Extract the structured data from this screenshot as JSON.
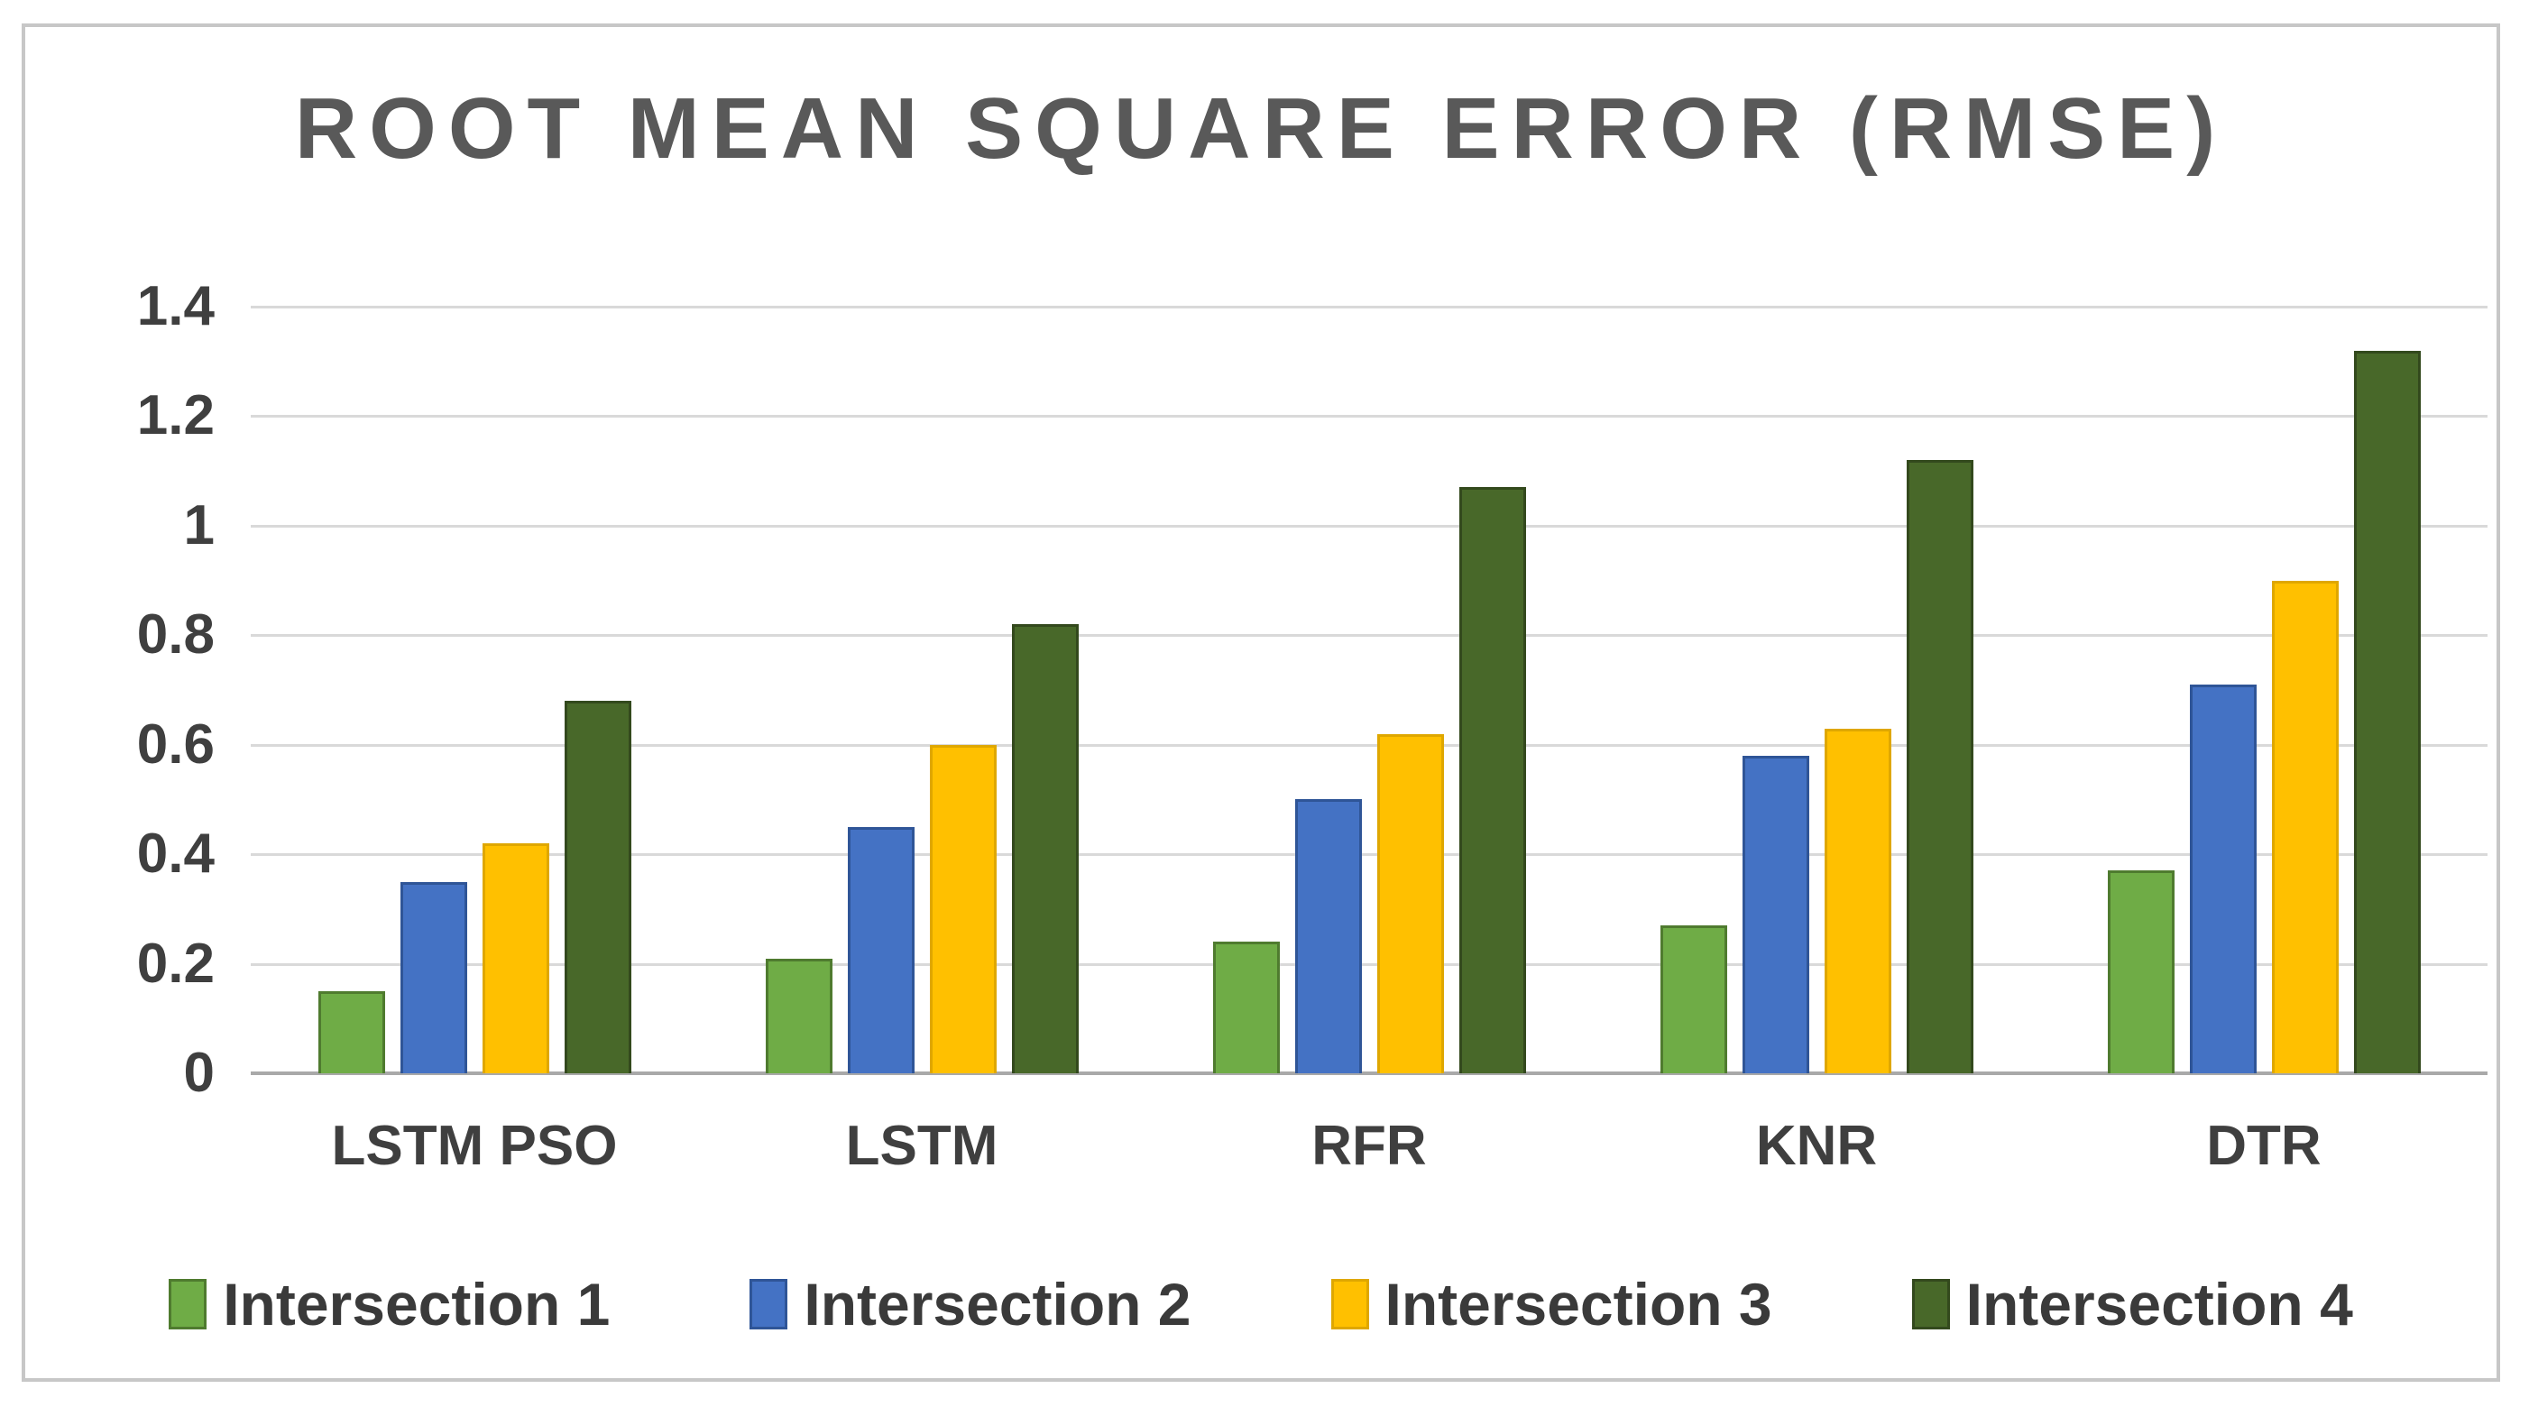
{
  "chart_data": {
    "type": "bar",
    "title": "ROOT MEAN SQUARE ERROR (RMSE)",
    "categories": [
      "LSTM PSO",
      "LSTM",
      "RFR",
      "KNR",
      "DTR"
    ],
    "series": [
      {
        "name": "Intersection 1",
        "color": "#6FAC46",
        "border_color": "#4F7B2F",
        "values": [
          0.15,
          0.21,
          0.24,
          0.27,
          0.37
        ]
      },
      {
        "name": "Intersection 2",
        "color": "#4472C4",
        "border_color": "#2F5597",
        "values": [
          0.35,
          0.45,
          0.5,
          0.58,
          0.71
        ]
      },
      {
        "name": "Intersection 3",
        "color": "#FFC000",
        "border_color": "#DFA700",
        "values": [
          0.42,
          0.6,
          0.62,
          0.63,
          0.9
        ]
      },
      {
        "name": "Intersection 4",
        "color": "#486829",
        "border_color": "#33491D",
        "values": [
          0.68,
          0.82,
          1.07,
          1.12,
          1.32
        ]
      }
    ],
    "xlabel": "",
    "ylabel": "",
    "ylim": [
      0,
      1.4
    ],
    "yticks": [
      0,
      0.2,
      0.4,
      0.6,
      0.8,
      1.0,
      1.2,
      1.4
    ],
    "ytick_labels": [
      "0",
      "0.2",
      "0.4",
      "0.6",
      "0.8",
      "1",
      "1.2",
      "1.4"
    ],
    "grid": true,
    "legend_position": "bottom",
    "colors": {
      "title_text": "#595959",
      "axis_text": "#3F3F3F",
      "gridline": "#D9D9D9",
      "axis_line": "#A9A9A9",
      "frame_border": "#C7C7C7",
      "background": "#FFFFFF"
    }
  }
}
